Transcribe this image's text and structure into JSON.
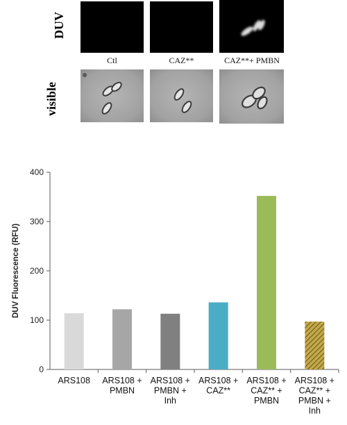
{
  "micrograph": {
    "rows": [
      "DUV",
      "visible"
    ],
    "captions": [
      "Ctl",
      "CAZ**",
      "CAZ**+ PMBN"
    ]
  },
  "chart_data": {
    "type": "bar",
    "ylabel": "DUV Fluorescence (RFU)",
    "ylim": [
      0,
      400
    ],
    "yticks": [
      0,
      100,
      200,
      300,
      400
    ],
    "categories": [
      [
        "ARS108"
      ],
      [
        "ARS108 +",
        "PMBN"
      ],
      [
        "ARS108 +",
        "PMBN +",
        "Inh"
      ],
      [
        "ARS108 +",
        "CAZ**"
      ],
      [
        "ARS108 +",
        "CAZ** +",
        "PMBN"
      ],
      [
        "ARS108 +",
        "CAZ** +",
        "PMBN +",
        "Inh"
      ]
    ],
    "values": [
      114,
      122,
      113,
      136,
      352,
      97
    ],
    "colors": [
      "#d9d9d9",
      "#a6a6a6",
      "#808080",
      "#4bacc6",
      "#9bbb59",
      "hatched-olive"
    ]
  }
}
